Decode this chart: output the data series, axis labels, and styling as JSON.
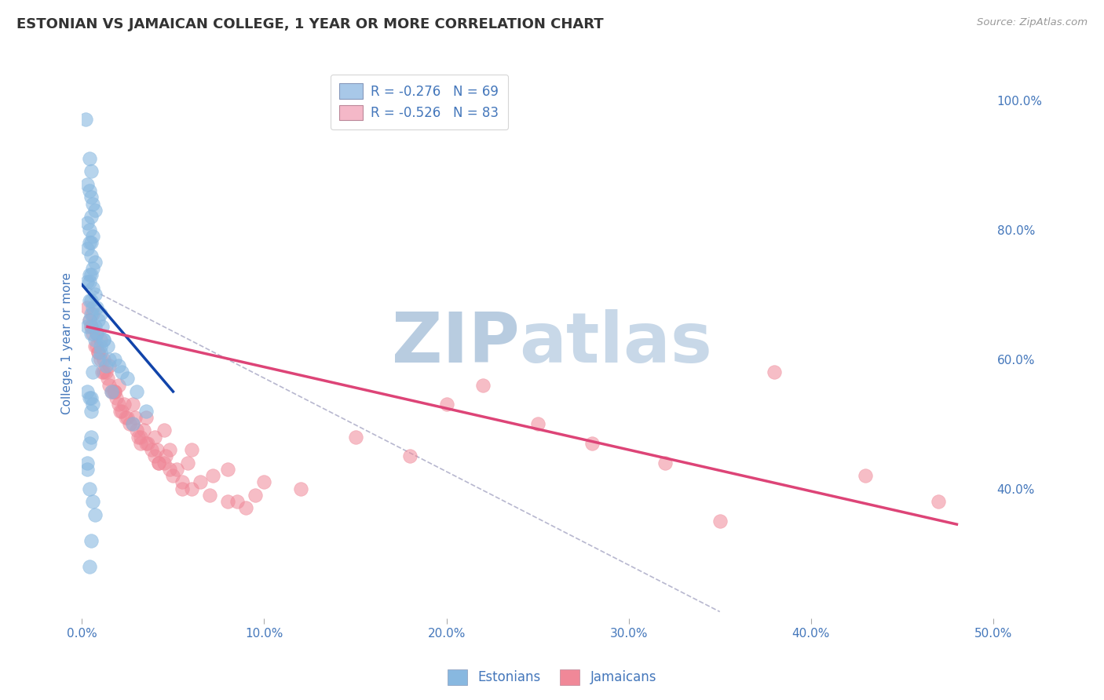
{
  "title": "ESTONIAN VS JAMAICAN COLLEGE, 1 YEAR OR MORE CORRELATION CHART",
  "source_text": "Source: ZipAtlas.com",
  "ylabel": "College, 1 year or more",
  "xlim": [
    0.0,
    50.0
  ],
  "ylim": [
    20.0,
    105.0
  ],
  "x_ticks": [
    0.0,
    10.0,
    20.0,
    30.0,
    40.0,
    50.0
  ],
  "x_tick_labels": [
    "0.0%",
    "10.0%",
    "20.0%",
    "30.0%",
    "40.0%",
    "50.0%"
  ],
  "y_ticks_right": [
    40.0,
    60.0,
    80.0,
    100.0
  ],
  "y_tick_labels_right": [
    "40.0%",
    "60.0%",
    "80.0%",
    "100.0%"
  ],
  "legend_blue_label": "R = -0.276   N = 69",
  "legend_pink_label": "R = -0.526   N = 83",
  "legend_blue_color": "#a8c8e8",
  "legend_pink_color": "#f4b8c8",
  "scatter_blue_color": "#88b8e0",
  "scatter_pink_color": "#f08898",
  "regression_blue_color": "#1144aa",
  "regression_pink_color": "#dd4477",
  "watermark_zip_color": "#b8cce0",
  "watermark_atlas_color": "#c8d8e8",
  "background_color": "#ffffff",
  "grid_color": "#cccccc",
  "title_color": "#333333",
  "axis_label_color": "#4477bb",
  "source_color": "#999999",
  "estonian_x": [
    0.2,
    0.4,
    0.5,
    0.3,
    0.4,
    0.5,
    0.6,
    0.7,
    0.5,
    0.3,
    0.4,
    0.6,
    0.5,
    0.4,
    0.3,
    0.5,
    0.7,
    0.6,
    0.4,
    0.5,
    0.3,
    0.4,
    0.6,
    0.7,
    0.5,
    0.4,
    0.8,
    1.0,
    0.9,
    1.1,
    0.7,
    0.8,
    1.2,
    1.4,
    1.0,
    0.9,
    1.5,
    1.3,
    0.6,
    0.5,
    0.4,
    0.3,
    0.5,
    0.7,
    1.0,
    1.8,
    2.2,
    2.5,
    3.0,
    2.0,
    0.3,
    0.4,
    0.5,
    0.6,
    0.5,
    1.6,
    3.5,
    0.4,
    0.3,
    0.6,
    0.7,
    2.8,
    0.5,
    1.2,
    0.4,
    0.5,
    0.3,
    0.4,
    0.6
  ],
  "estonian_y": [
    97,
    91,
    89,
    87,
    86,
    85,
    84,
    83,
    82,
    81,
    80,
    79,
    78,
    78,
    77,
    76,
    75,
    74,
    73,
    73,
    72,
    72,
    71,
    70,
    69,
    69,
    68,
    67,
    66,
    65,
    65,
    64,
    63,
    62,
    61,
    60,
    60,
    59,
    68,
    67,
    66,
    65,
    64,
    63,
    62,
    60,
    58,
    57,
    55,
    59,
    55,
    54,
    54,
    53,
    52,
    55,
    52,
    47,
    43,
    38,
    36,
    50,
    32,
    63,
    28,
    48,
    44,
    40,
    58
  ],
  "jamaican_x": [
    0.3,
    0.5,
    0.6,
    0.8,
    0.9,
    1.0,
    1.2,
    1.4,
    1.5,
    1.7,
    1.9,
    2.0,
    2.2,
    2.5,
    2.8,
    3.0,
    3.2,
    3.5,
    3.8,
    4.0,
    4.2,
    4.5,
    4.8,
    5.0,
    5.5,
    6.0,
    7.0,
    8.0,
    9.0,
    0.4,
    0.7,
    1.1,
    1.6,
    2.1,
    2.6,
    3.1,
    3.6,
    4.1,
    4.6,
    5.2,
    6.5,
    8.5,
    0.5,
    0.9,
    1.3,
    1.8,
    2.3,
    2.9,
    3.4,
    4.0,
    4.8,
    5.8,
    7.2,
    9.5,
    0.6,
    1.0,
    1.5,
    2.0,
    2.8,
    3.5,
    4.5,
    6.0,
    8.0,
    10.0,
    12.0,
    15.0,
    18.0,
    20.0,
    25.0,
    28.0,
    32.0,
    38.0,
    43.0,
    47.0,
    0.8,
    1.2,
    1.8,
    2.4,
    3.2,
    4.2,
    5.5,
    22.0,
    35.0
  ],
  "jamaican_y": [
    68,
    65,
    64,
    62,
    61,
    60,
    58,
    57,
    56,
    55,
    54,
    53,
    52,
    51,
    50,
    49,
    48,
    47,
    46,
    45,
    44,
    44,
    43,
    42,
    41,
    40,
    39,
    38,
    37,
    66,
    62,
    58,
    55,
    52,
    50,
    48,
    47,
    46,
    45,
    43,
    41,
    38,
    65,
    61,
    58,
    55,
    53,
    51,
    49,
    48,
    46,
    44,
    42,
    39,
    67,
    63,
    59,
    56,
    53,
    51,
    49,
    46,
    43,
    41,
    40,
    48,
    45,
    53,
    50,
    47,
    44,
    58,
    42,
    38,
    64,
    60,
    55,
    51,
    47,
    44,
    40,
    56,
    35
  ],
  "blue_reg_x0": 0.0,
  "blue_reg_y0": 71.5,
  "blue_reg_x1": 5.0,
  "blue_reg_y1": 55.0,
  "pink_reg_x0": 0.3,
  "pink_reg_y0": 65.0,
  "pink_reg_x1": 48.0,
  "pink_reg_y1": 34.5,
  "dash_x0": 0.0,
  "dash_y0": 71.5,
  "dash_x1": 35.0,
  "dash_y1": 21.0
}
